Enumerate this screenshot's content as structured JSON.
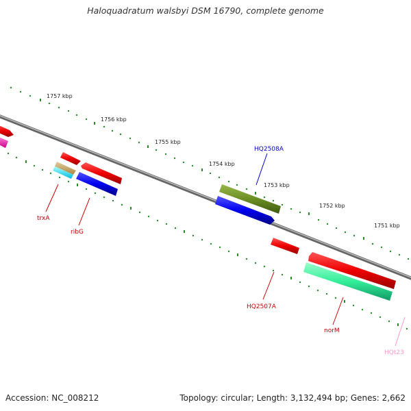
{
  "title": "Haloquadratum walsbyi DSM 16790, complete genome",
  "footer": {
    "accession": "Accession: NC_008212",
    "topology": "Topology: circular; Length: 3,132,494 bp; Genes: 2,662"
  },
  "ticks": [
    "1757 kbp",
    "1756 kbp",
    "1755 kbp",
    "1754 kbp",
    "1753 kbp",
    "1752 kbp",
    "1751 kbp"
  ],
  "gene_labels": [
    {
      "text": "HQ2508A",
      "color": "#0000cc"
    },
    {
      "text": "trxA",
      "color": "#cc0000"
    },
    {
      "text": "ribG",
      "color": "#cc0000"
    },
    {
      "text": "HQ2507A",
      "color": "#cc0000"
    },
    {
      "text": "norM",
      "color": "#cc0000"
    },
    {
      "text": "HQt23",
      "color": "#ff99cc"
    }
  ],
  "colors": {
    "cds_red": "#ff0000",
    "cds_blue": "#0000ff",
    "cds_olive": "#6b8e23",
    "cds_teal": "#33ff99",
    "trna_pink": "#ff66cc",
    "backbone": "#888888",
    "tick_green": "#2a8a2a"
  }
}
